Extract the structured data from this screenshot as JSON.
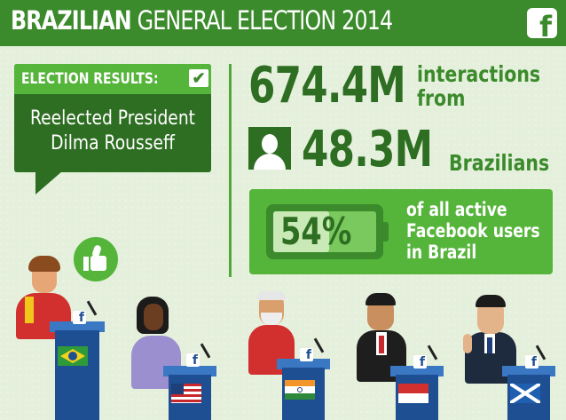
{
  "header": {
    "title_bold": "BRAZILIAN",
    "title_rest": "GENERAL ELECTION 2014",
    "logo_letter": "f"
  },
  "results": {
    "label": "ELECTION RESULTS:",
    "check": "✔",
    "line1": "Reelected President",
    "line2": "Dilma Rousseff"
  },
  "stats": {
    "interactions_value": "674.4M",
    "interactions_word1": "interactions",
    "interactions_word2": "from",
    "users_value": "48.3M",
    "users_word": "Brazilians",
    "percent": "54%",
    "percent_fraction": 0.54,
    "percent_line1": "of all active",
    "percent_line2": "Facebook users",
    "percent_line3": "in Brazil"
  },
  "podiums": [
    {
      "fb": "f",
      "flag": "brazil-flag"
    },
    {
      "fb": "f",
      "flag": "usa-flag"
    },
    {
      "fb": "f",
      "flag": "india-flag"
    },
    {
      "fb": "f",
      "flag": "indonesia-flag"
    },
    {
      "fb": "f",
      "flag": "scotland-flag"
    }
  ],
  "colors": {
    "banner_green": "#3b8a2b",
    "dark_green": "#2e6e22",
    "light_green": "#55b43a",
    "podium_blue": "#1f4f93"
  }
}
